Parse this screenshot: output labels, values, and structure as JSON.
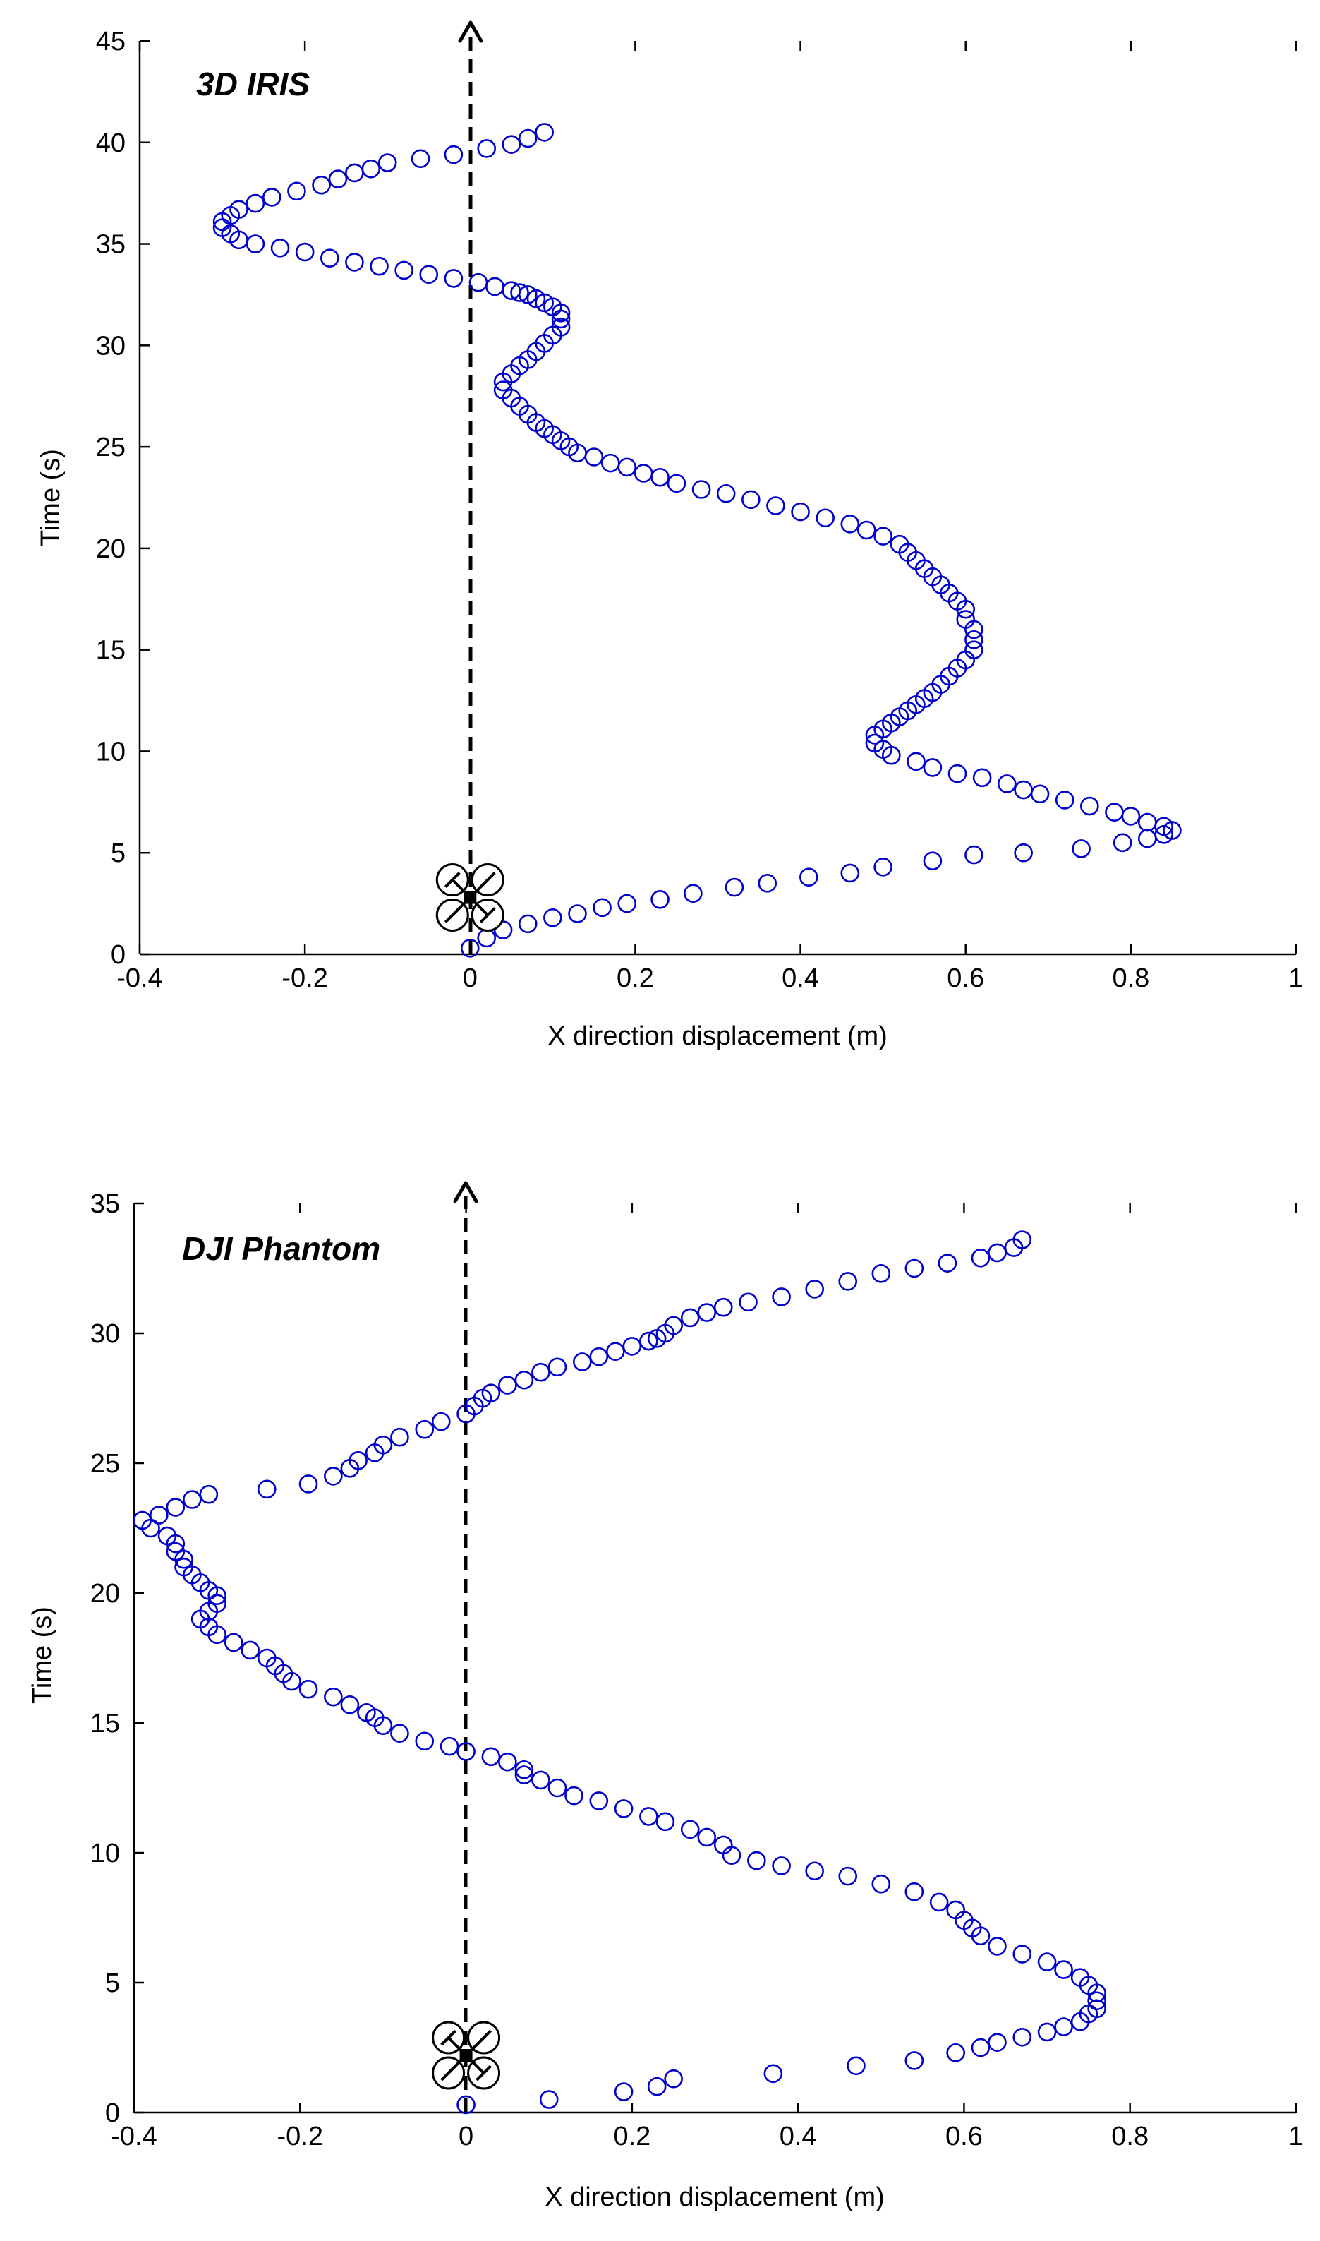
{
  "chart_data": [
    {
      "type": "scatter",
      "title": "3D IRIS",
      "xlabel": "X direction displacement (m)",
      "ylabel": "Time (s)",
      "xlim": [
        -0.4,
        1
      ],
      "ylim": [
        0,
        45
      ],
      "xticks": [
        -0.4,
        -0.2,
        0,
        0.2,
        0.4,
        0.6,
        0.8,
        1
      ],
      "xtick_labels": [
        "-0.4",
        "-0.2",
        "0",
        "0.2",
        "0.4",
        "0.6",
        "0.8",
        "1"
      ],
      "yticks": [
        0,
        5,
        10,
        15,
        20,
        25,
        30,
        35,
        40,
        45
      ],
      "ytick_labels": [
        "0",
        "5",
        "10",
        "15",
        "20",
        "25",
        "30",
        "35",
        "40",
        "45"
      ],
      "marker_color": "#0000cc",
      "reference_line_x": 0,
      "drone_icon_y": 2.8,
      "series": [
        {
          "name": "3D IRIS trajectory",
          "x": [
            0.0,
            0.02,
            0.04,
            0.07,
            0.1,
            0.13,
            0.16,
            0.19,
            0.23,
            0.27,
            0.32,
            0.36,
            0.41,
            0.46,
            0.5,
            0.56,
            0.61,
            0.67,
            0.74,
            0.79,
            0.82,
            0.84,
            0.85,
            0.84,
            0.82,
            0.8,
            0.78,
            0.75,
            0.72,
            0.69,
            0.67,
            0.65,
            0.62,
            0.59,
            0.56,
            0.54,
            0.51,
            0.5,
            0.49,
            0.49,
            0.5,
            0.51,
            0.52,
            0.53,
            0.54,
            0.55,
            0.56,
            0.57,
            0.58,
            0.59,
            0.6,
            0.61,
            0.61,
            0.61,
            0.6,
            0.6,
            0.59,
            0.58,
            0.57,
            0.56,
            0.55,
            0.54,
            0.53,
            0.52,
            0.5,
            0.48,
            0.46,
            0.43,
            0.4,
            0.37,
            0.34,
            0.31,
            0.28,
            0.25,
            0.23,
            0.21,
            0.19,
            0.17,
            0.15,
            0.13,
            0.12,
            0.11,
            0.1,
            0.09,
            0.08,
            0.07,
            0.06,
            0.05,
            0.04,
            0.04,
            0.05,
            0.06,
            0.07,
            0.08,
            0.09,
            0.1,
            0.11,
            0.11,
            0.11,
            0.1,
            0.09,
            0.08,
            0.07,
            0.06,
            0.05,
            0.03,
            0.01,
            -0.02,
            -0.05,
            -0.08,
            -0.11,
            -0.14,
            -0.17,
            -0.2,
            -0.23,
            -0.26,
            -0.28,
            -0.29,
            -0.3,
            -0.3,
            -0.29,
            -0.28,
            -0.26,
            -0.24,
            -0.21,
            -0.18,
            -0.16,
            -0.14,
            -0.12,
            -0.1,
            -0.06,
            -0.02,
            0.02,
            0.05,
            0.07,
            0.09
          ],
          "y": [
            0.3,
            0.8,
            1.2,
            1.5,
            1.8,
            2.0,
            2.3,
            2.5,
            2.7,
            3.0,
            3.3,
            3.5,
            3.8,
            4.0,
            4.3,
            4.6,
            4.9,
            5.0,
            5.2,
            5.5,
            5.7,
            5.9,
            6.1,
            6.3,
            6.5,
            6.8,
            7.0,
            7.3,
            7.6,
            7.9,
            8.1,
            8.4,
            8.7,
            8.9,
            9.2,
            9.5,
            9.8,
            10.1,
            10.4,
            10.8,
            11.1,
            11.4,
            11.7,
            12.0,
            12.3,
            12.6,
            12.9,
            13.3,
            13.7,
            14.1,
            14.5,
            15.0,
            15.5,
            16.0,
            16.5,
            17.0,
            17.4,
            17.8,
            18.2,
            18.6,
            19.0,
            19.4,
            19.8,
            20.2,
            20.6,
            20.9,
            21.2,
            21.5,
            21.8,
            22.1,
            22.4,
            22.7,
            22.9,
            23.2,
            23.5,
            23.7,
            24.0,
            24.2,
            24.5,
            24.7,
            25.0,
            25.3,
            25.6,
            25.9,
            26.2,
            26.6,
            27.0,
            27.4,
            27.8,
            28.2,
            28.6,
            29.0,
            29.3,
            29.7,
            30.1,
            30.5,
            30.9,
            31.3,
            31.6,
            31.9,
            32.1,
            32.3,
            32.5,
            32.6,
            32.7,
            32.9,
            33.1,
            33.3,
            33.5,
            33.7,
            33.9,
            34.1,
            34.3,
            34.6,
            34.8,
            35.0,
            35.2,
            35.5,
            35.8,
            36.1,
            36.4,
            36.7,
            37.0,
            37.3,
            37.6,
            37.9,
            38.2,
            38.5,
            38.7,
            39.0,
            39.2,
            39.4,
            39.7,
            39.9,
            40.2,
            40.5
          ]
        }
      ]
    },
    {
      "type": "scatter",
      "title": "DJI Phantom",
      "xlabel": "X direction displacement (m)",
      "ylabel": "Time (s)",
      "xlim": [
        -0.4,
        1
      ],
      "ylim": [
        0,
        35
      ],
      "xticks": [
        -0.4,
        -0.2,
        0,
        0.2,
        0.4,
        0.6,
        0.8,
        1
      ],
      "xtick_labels": [
        "-0.4",
        "-0.2",
        "0",
        "0.2",
        "0.4",
        "0.6",
        "0.8",
        "1"
      ],
      "yticks": [
        0,
        5,
        10,
        15,
        20,
        25,
        30,
        35
      ],
      "ytick_labels": [
        "0",
        "5",
        "10",
        "15",
        "20",
        "25",
        "30",
        "35"
      ],
      "marker_color": "#0000cc",
      "reference_line_x": 0,
      "drone_icon_y": 2.2,
      "series": [
        {
          "name": "DJI Phantom trajectory",
          "x": [
            0.0,
            0.1,
            0.19,
            0.23,
            0.25,
            0.37,
            0.47,
            0.54,
            0.59,
            0.62,
            0.64,
            0.67,
            0.7,
            0.72,
            0.74,
            0.75,
            0.76,
            0.76,
            0.76,
            0.75,
            0.74,
            0.72,
            0.7,
            0.67,
            0.64,
            0.62,
            0.61,
            0.6,
            0.59,
            0.57,
            0.54,
            0.5,
            0.46,
            0.42,
            0.38,
            0.35,
            0.32,
            0.31,
            0.29,
            0.27,
            0.24,
            0.22,
            0.19,
            0.16,
            0.13,
            0.11,
            0.09,
            0.07,
            0.07,
            0.05,
            0.03,
            0.0,
            -0.02,
            -0.05,
            -0.08,
            -0.1,
            -0.11,
            -0.12,
            -0.14,
            -0.16,
            -0.19,
            -0.21,
            -0.22,
            -0.23,
            -0.24,
            -0.26,
            -0.28,
            -0.3,
            -0.31,
            -0.32,
            -0.31,
            -0.3,
            -0.3,
            -0.31,
            -0.32,
            -0.33,
            -0.34,
            -0.34,
            -0.35,
            -0.35,
            -0.36,
            -0.38,
            -0.39,
            -0.37,
            -0.35,
            -0.33,
            -0.31,
            -0.24,
            -0.19,
            -0.16,
            -0.14,
            -0.13,
            -0.11,
            -0.1,
            -0.08,
            -0.05,
            -0.03,
            0.0,
            0.01,
            0.02,
            0.03,
            0.05,
            0.07,
            0.09,
            0.11,
            0.14,
            0.16,
            0.18,
            0.2,
            0.22,
            0.23,
            0.24,
            0.25,
            0.27,
            0.29,
            0.31,
            0.34,
            0.38,
            0.42,
            0.46,
            0.5,
            0.54,
            0.58,
            0.62,
            0.64,
            0.66,
            0.67
          ],
          "y": [
            0.3,
            0.5,
            0.8,
            1.0,
            1.3,
            1.5,
            1.8,
            2.0,
            2.3,
            2.5,
            2.7,
            2.9,
            3.1,
            3.3,
            3.5,
            3.8,
            4.0,
            4.3,
            4.6,
            4.9,
            5.2,
            5.5,
            5.8,
            6.1,
            6.4,
            6.8,
            7.1,
            7.4,
            7.8,
            8.1,
            8.5,
            8.8,
            9.1,
            9.3,
            9.5,
            9.7,
            9.9,
            10.3,
            10.6,
            10.9,
            11.2,
            11.4,
            11.7,
            12.0,
            12.2,
            12.5,
            12.8,
            13.0,
            13.2,
            13.5,
            13.7,
            13.9,
            14.1,
            14.3,
            14.6,
            14.9,
            15.2,
            15.4,
            15.7,
            16.0,
            16.3,
            16.6,
            16.9,
            17.2,
            17.5,
            17.8,
            18.1,
            18.4,
            18.7,
            19.0,
            19.3,
            19.6,
            19.9,
            20.1,
            20.4,
            20.7,
            21.0,
            21.3,
            21.6,
            21.9,
            22.2,
            22.5,
            22.8,
            23.0,
            23.3,
            23.6,
            23.8,
            24.0,
            24.2,
            24.5,
            24.8,
            25.1,
            25.4,
            25.7,
            26.0,
            26.3,
            26.6,
            26.9,
            27.2,
            27.5,
            27.7,
            28.0,
            28.2,
            28.5,
            28.7,
            28.9,
            29.1,
            29.3,
            29.5,
            29.7,
            29.8,
            30.0,
            30.3,
            30.6,
            30.8,
            31.0,
            31.2,
            31.4,
            31.7,
            32.0,
            32.3,
            32.5,
            32.7,
            32.9,
            33.1,
            33.3,
            33.6
          ]
        }
      ]
    }
  ]
}
